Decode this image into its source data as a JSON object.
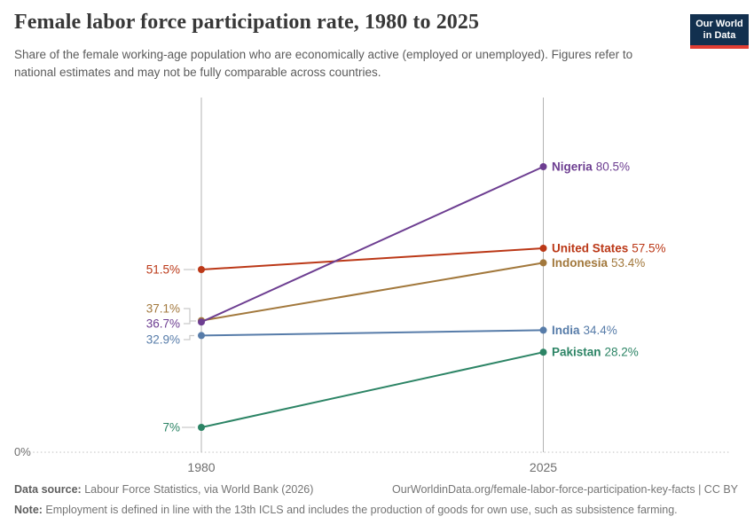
{
  "header": {
    "title": "Female labor force participation rate, 1980 to 2025",
    "subtitle": "Share of the female working-age population who are economically active (employed or unemployed). Figures refer to national estimates and may not be fully comparable across countries.",
    "logo": {
      "line1": "Our World",
      "line2": "in Data"
    }
  },
  "chart_data": {
    "type": "line",
    "title": "Female labor force participation rate, 1980 to 2025",
    "x": [
      1980,
      2025
    ],
    "x_tick_labels": [
      "1980",
      "2025"
    ],
    "ylim": [
      0,
      100
    ],
    "y_baseline_label": "0%",
    "grid": "dotted baseline at 0% only",
    "legend": "direct labels at right of lines",
    "series": [
      {
        "name": "Nigeria",
        "values": [
          36.7,
          80.5
        ],
        "start_label": "36.7%",
        "end_label": "80.5%",
        "color": "#6d3e91"
      },
      {
        "name": "United States",
        "values": [
          51.5,
          57.5
        ],
        "start_label": "51.5%",
        "end_label": "57.5%",
        "color": "#bb3817"
      },
      {
        "name": "Indonesia",
        "values": [
          37.1,
          53.4
        ],
        "start_label": "37.1%",
        "end_label": "53.4%",
        "color": "#a2783c"
      },
      {
        "name": "India",
        "values": [
          32.9,
          34.4
        ],
        "start_label": "32.9%",
        "end_label": "34.4%",
        "color": "#577ca9"
      },
      {
        "name": "Pakistan",
        "values": [
          7,
          28.2
        ],
        "start_label": "7%",
        "end_label": "28.2%",
        "color": "#2c8465"
      }
    ]
  },
  "footer": {
    "datasource_label": "Data source:",
    "datasource_text": " Labour Force Statistics, via World Bank (2026)",
    "link_text": "OurWorldinData.org/female-labor-force-participation-key-facts | CC BY",
    "note_label": "Note:",
    "note_text": " Employment is defined in line with the 13th ICLS and includes the production of goods for own use, such as subsistence farming."
  }
}
